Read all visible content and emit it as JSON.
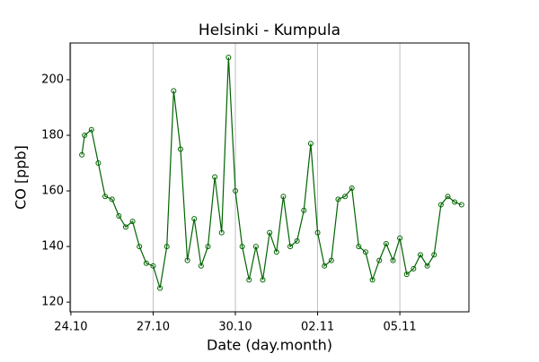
{
  "chart_data": {
    "type": "line",
    "title": "Helsinki - Kumpula",
    "x_label": "Date (day.month)",
    "y_label": "CO [ppb]",
    "x": [
      0.4,
      0.5,
      0.75,
      1.0,
      1.25,
      1.5,
      1.75,
      2.0,
      2.25,
      2.5,
      2.75,
      3.0,
      3.25,
      3.5,
      3.75,
      4.0,
      4.25,
      4.5,
      4.75,
      5.0,
      5.25,
      5.5,
      5.75,
      6.0,
      6.25,
      6.5,
      6.75,
      7.0,
      7.25,
      7.5,
      7.75,
      8.0,
      8.25,
      8.5,
      8.75,
      9.0,
      9.25,
      9.5,
      9.75,
      10.0,
      10.25,
      10.5,
      10.75,
      11.0,
      11.25,
      11.5,
      11.75,
      12.0,
      12.25,
      12.5,
      12.75,
      13.0,
      13.25,
      13.5,
      13.75,
      14.0,
      14.25
    ],
    "values": [
      173,
      180,
      182,
      170,
      158,
      157,
      151,
      147,
      149,
      140,
      134,
      133,
      125,
      140,
      196,
      175,
      135,
      150,
      133,
      140,
      165,
      145,
      208,
      160,
      140,
      128,
      140,
      128,
      145,
      138,
      158,
      140,
      142,
      153,
      177,
      145,
      133,
      135,
      157,
      158,
      161,
      140,
      138,
      128,
      135,
      141,
      135,
      143,
      130,
      132,
      137,
      133,
      137,
      155,
      158,
      156,
      155
    ],
    "color": "#006400",
    "xlim": [
      -0.03,
      14.52
    ],
    "ylim": [
      116.5,
      213.2
    ],
    "xticks": [
      {
        "value": 0,
        "label": "24.10"
      },
      {
        "value": 3,
        "label": "27.10"
      },
      {
        "value": 6,
        "label": "30.10"
      },
      {
        "value": 9,
        "label": "02.11"
      },
      {
        "value": 12,
        "label": "05.11"
      }
    ],
    "yticks": [
      120,
      140,
      160,
      180,
      200
    ],
    "grid": true
  }
}
